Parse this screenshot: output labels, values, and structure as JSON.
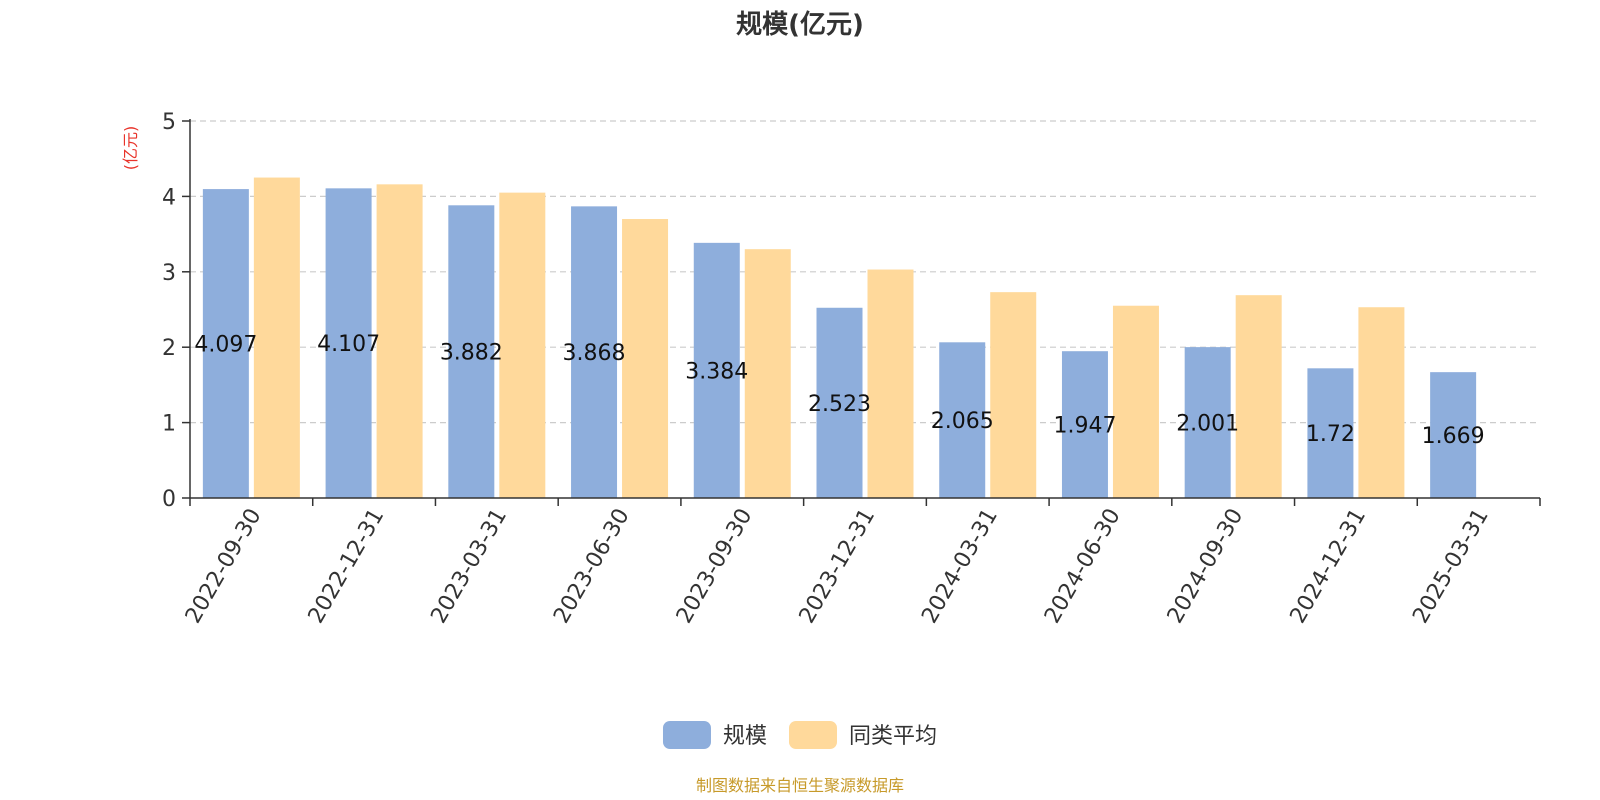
{
  "chart_data": {
    "type": "bar",
    "title": "规模(亿元)",
    "ylabel": "(亿元)",
    "ylim": [
      0,
      5
    ],
    "yticks": [
      0,
      1,
      2,
      3,
      4,
      5
    ],
    "grid": true,
    "legend_position": "bottom",
    "categories": [
      "2022-09-30",
      "2022-12-31",
      "2023-03-31",
      "2023-06-30",
      "2023-09-30",
      "2023-12-31",
      "2024-03-31",
      "2024-06-30",
      "2024-09-30",
      "2024-12-31",
      "2025-03-31"
    ],
    "series": [
      {
        "name": "规模",
        "color": "#8eaedc",
        "values": [
          4.097,
          4.107,
          3.882,
          3.868,
          3.384,
          2.523,
          2.065,
          1.947,
          2.001,
          1.72,
          1.669
        ],
        "labels": [
          "4.097",
          "4.107",
          "3.882",
          "3.868",
          "3.384",
          "2.523",
          "2.065",
          "1.947",
          "2.001",
          "1.72",
          "1.669"
        ]
      },
      {
        "name": "同类平均",
        "color": "#ffd99b",
        "values": [
          4.25,
          4.16,
          4.05,
          3.7,
          3.3,
          3.03,
          2.73,
          2.55,
          2.69,
          2.53,
          null
        ]
      }
    ],
    "source": "制图数据来自恒生聚源数据库"
  },
  "colors": {
    "title": "#333333",
    "unit": "#e8332a",
    "source": "#c79a2a",
    "axis": "#333333",
    "grid": "#cccccc"
  }
}
